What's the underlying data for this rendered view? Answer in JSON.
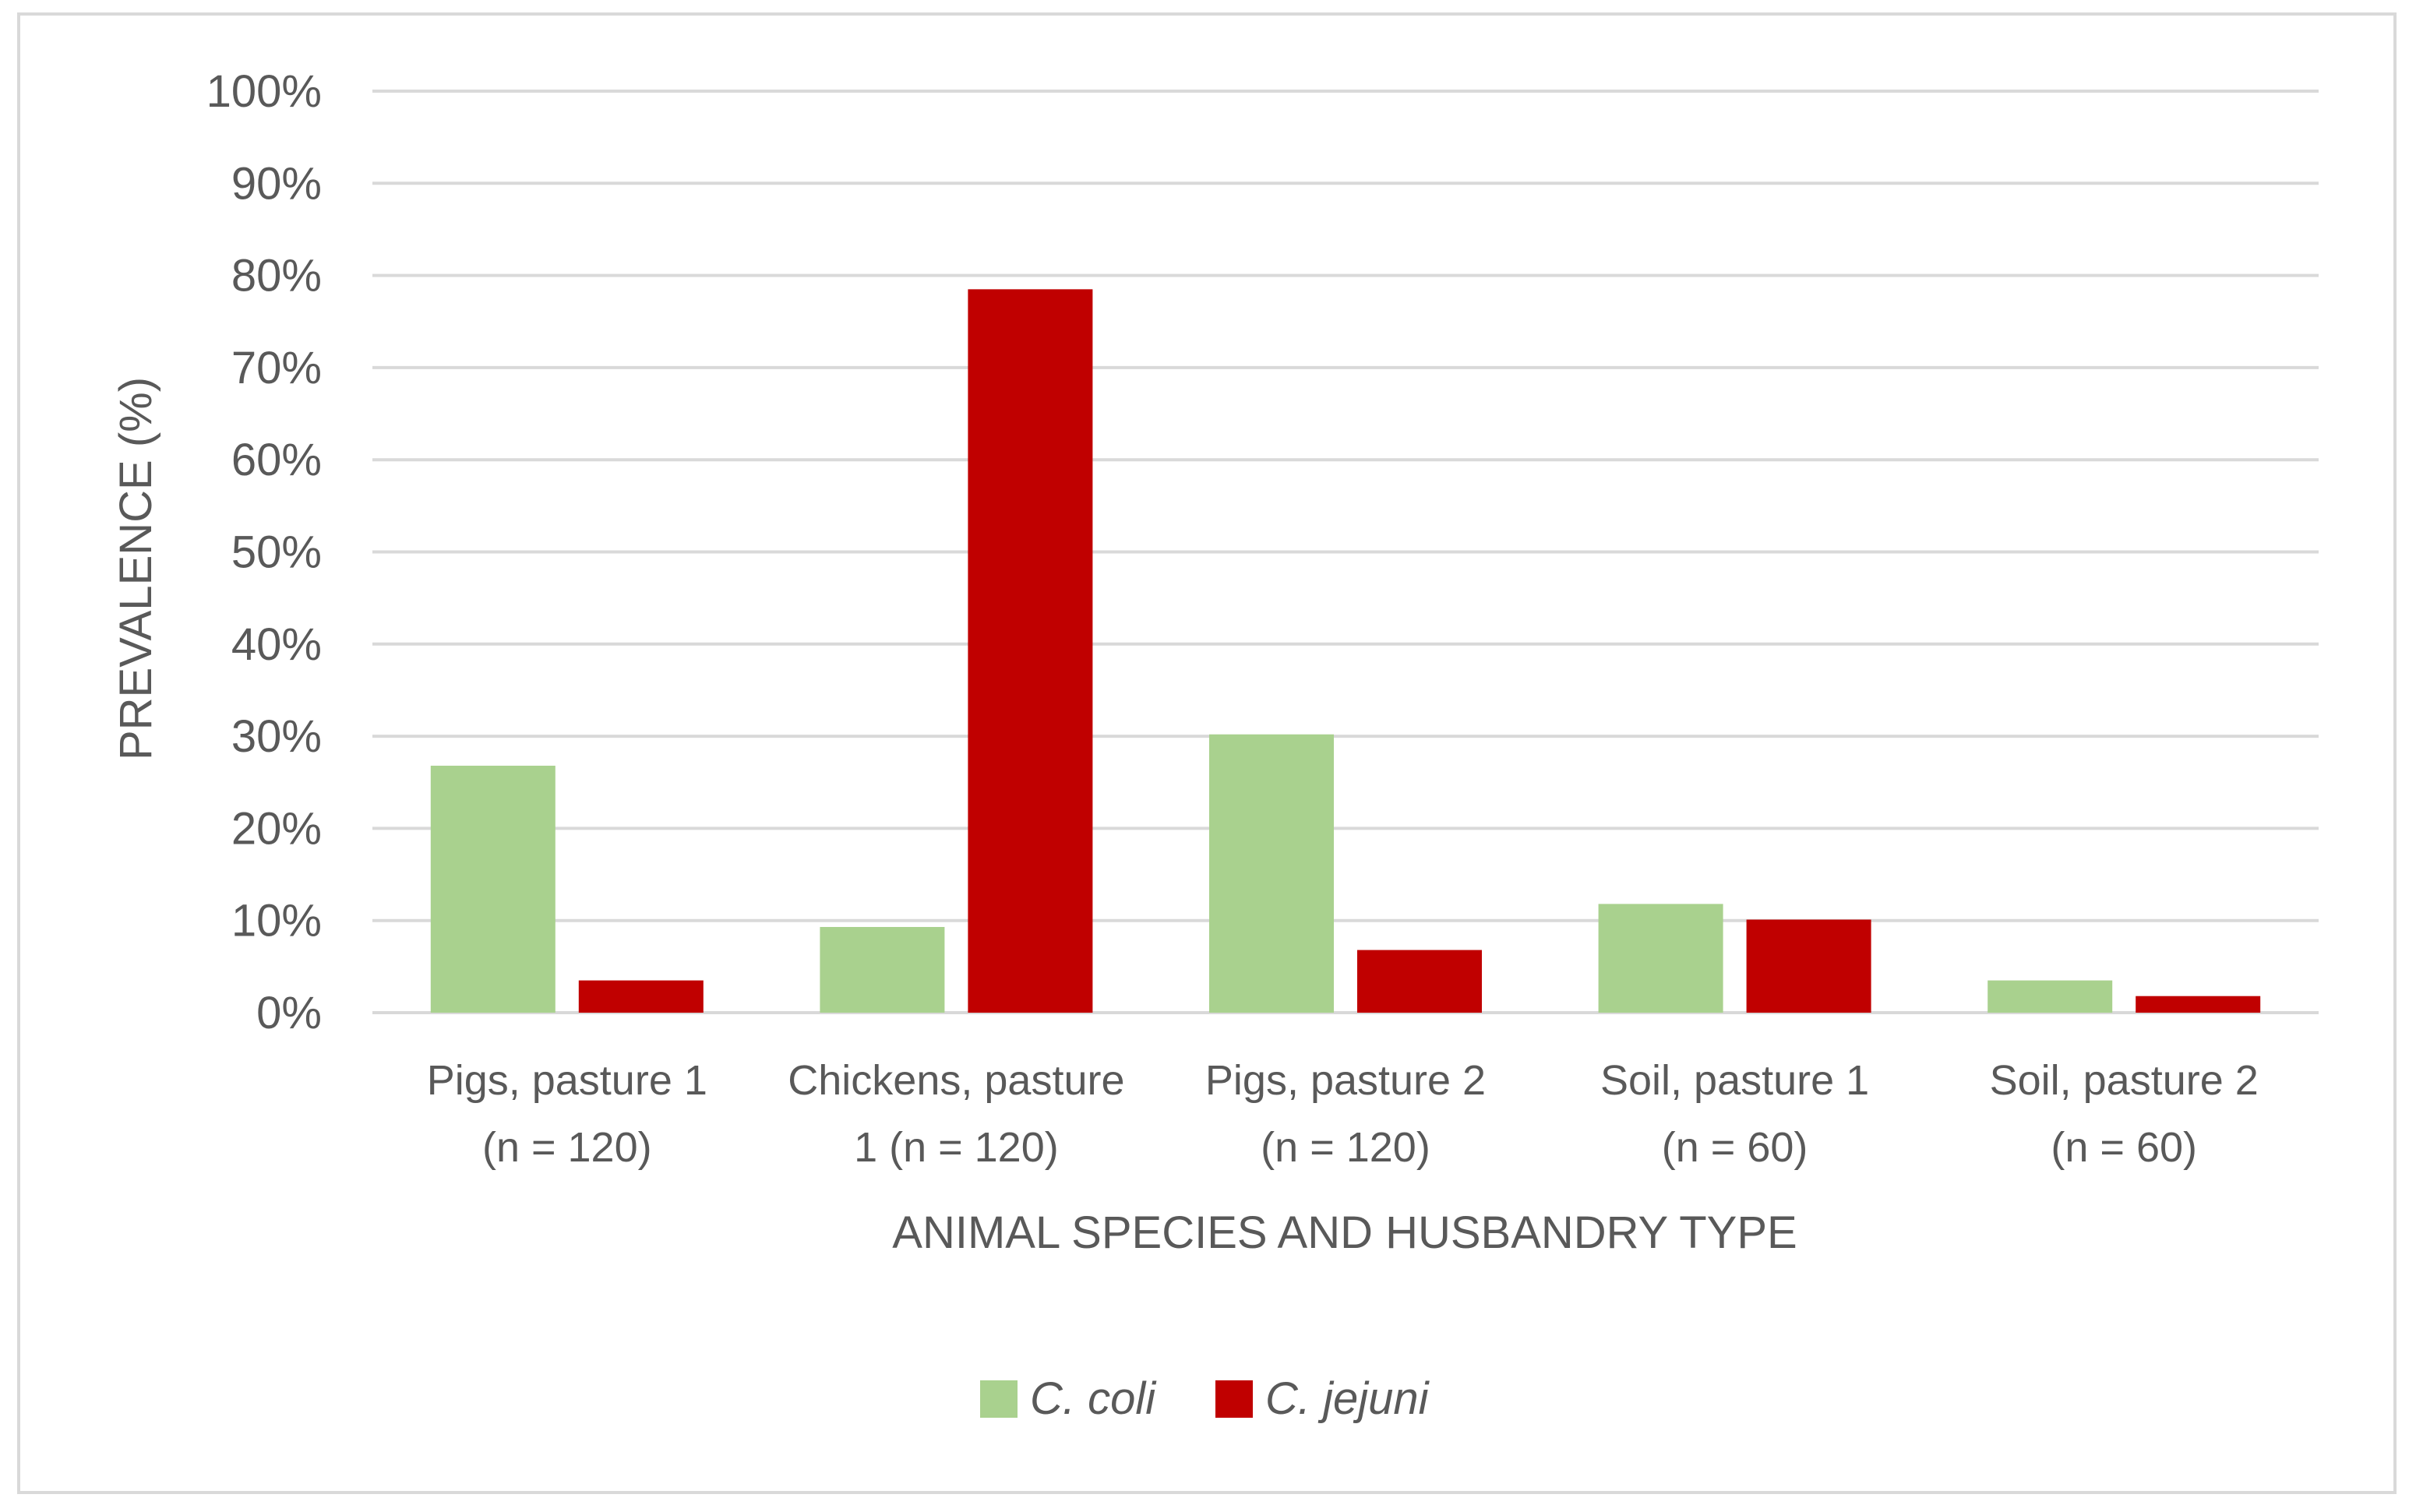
{
  "chart_data": {
    "type": "bar",
    "categories": [
      [
        "Pigs, pasture 1",
        "(n = 120)"
      ],
      [
        "Chickens, pasture",
        "1   (n = 120)"
      ],
      [
        "Pigs, pasture 2",
        "(n = 120)"
      ],
      [
        "Soil, pasture 1",
        "(n = 60)"
      ],
      [
        "Soil, pasture 2",
        "(n = 60)"
      ]
    ],
    "series": [
      {
        "name": "C. coli",
        "color": "#a9d18e",
        "values": [
          26.8,
          9.3,
          30.2,
          11.8,
          3.5
        ]
      },
      {
        "name": "C. jejuni",
        "color": "#c00000",
        "values": [
          3.5,
          78.5,
          6.8,
          10.1,
          1.8
        ]
      }
    ],
    "xlabel": "ANIMAL SPECIES AND HUSBANDRY TYPE",
    "ylabel": "PREVALENCE (%)",
    "ylim": [
      0,
      100
    ],
    "yticks": [
      "0%",
      "10%",
      "20%",
      "30%",
      "40%",
      "50%",
      "60%",
      "70%",
      "80%",
      "90%",
      "100%"
    ],
    "grid": true,
    "legend_position": "bottom"
  }
}
